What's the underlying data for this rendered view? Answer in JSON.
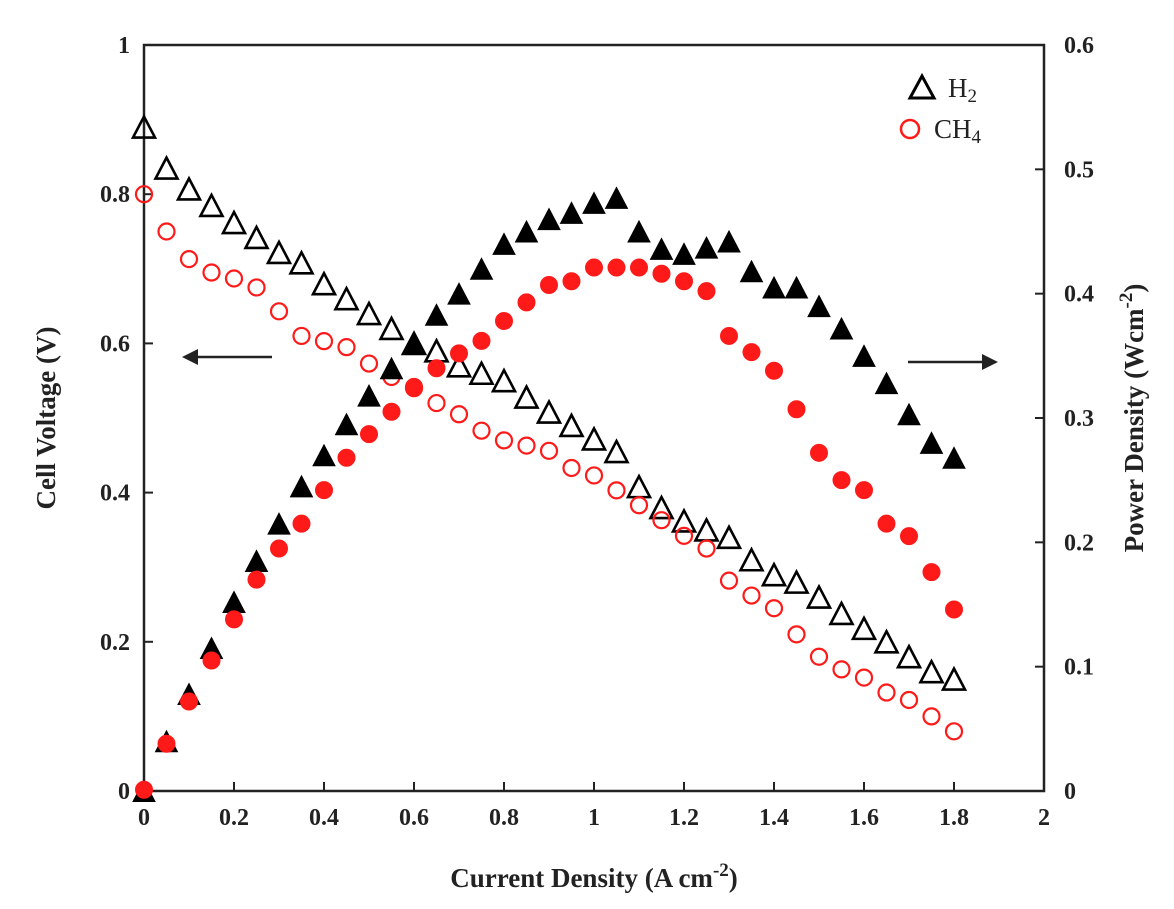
{
  "chart_data": {
    "type": "scatter",
    "x_label": "Current  Density (A cm",
    "x_label_sup": "-2",
    "x_label_end": ")",
    "y_left_label": "Cell Voltage (V)",
    "y_right_label": "Power Density (Wcm",
    "y_right_label_sup": "-2",
    "y_right_label_end": ")",
    "x_range": [
      0,
      2
    ],
    "y_left_range": [
      0,
      1
    ],
    "y_right_range": [
      0,
      0.6
    ],
    "x_ticks": [
      "0",
      "0.2",
      "0.4",
      "0.6",
      "0.8",
      "1",
      "1.2",
      "1.4",
      "1.6",
      "1.8",
      "2"
    ],
    "y_left_ticks": [
      "0",
      "0.2",
      "0.4",
      "0.6",
      "0.8",
      "1"
    ],
    "y_right_ticks": [
      "0",
      "0.1",
      "0.2",
      "0.3",
      "0.4",
      "0.5",
      "0.6"
    ],
    "legend": [
      {
        "name": "H2",
        "label": "H",
        "sub": "2",
        "marker": "triangle",
        "color": "#000000"
      },
      {
        "name": "CH4",
        "label": "CH",
        "sub": "4",
        "marker": "circle",
        "color": "#ff1a1a"
      }
    ],
    "annotations": [
      {
        "text": "arrow pointing left to Cell Voltage axis",
        "direction": "left"
      },
      {
        "text": "arrow pointing right to Power Density axis",
        "direction": "right"
      }
    ],
    "x": [
      0,
      0.05,
      0.1,
      0.15,
      0.2,
      0.25,
      0.3,
      0.35,
      0.4,
      0.45,
      0.5,
      0.55,
      0.6,
      0.65,
      0.7,
      0.75,
      0.8,
      0.85,
      0.9,
      0.95,
      1.0,
      1.05,
      1.1,
      1.15,
      1.2,
      1.25,
      1.3,
      1.35,
      1.4,
      1.45,
      1.5,
      1.55,
      1.6,
      1.65,
      1.7,
      1.75,
      1.8
    ],
    "series": [
      {
        "name": "H2 voltage",
        "axis": "left",
        "marker": "triangle-open",
        "color": "#000000",
        "values": [
          0.89,
          0.835,
          0.807,
          0.785,
          0.762,
          0.742,
          0.722,
          0.708,
          0.68,
          0.66,
          0.64,
          0.62,
          0.6,
          0.59,
          0.57,
          0.56,
          0.55,
          0.528,
          0.508,
          0.49,
          0.472,
          0.455,
          0.408,
          0.38,
          0.362,
          0.35,
          0.34,
          0.31,
          0.29,
          0.28,
          0.26,
          0.238,
          0.218,
          0.2,
          0.18,
          0.16,
          0.15
        ]
      },
      {
        "name": "CH4 voltage",
        "axis": "left",
        "marker": "circle-open",
        "color": "#ff1a1a",
        "values": [
          0.8,
          0.75,
          0.713,
          0.695,
          0.687,
          0.675,
          0.643,
          0.61,
          0.603,
          0.595,
          0.573,
          0.555,
          0.54,
          0.52,
          0.505,
          0.483,
          0.47,
          0.463,
          0.456,
          0.433,
          0.423,
          0.403,
          0.383,
          0.363,
          0.342,
          0.325,
          0.282,
          0.262,
          0.245,
          0.21,
          0.18,
          0.163,
          0.152,
          0.132,
          0.122,
          0.1,
          0.08
        ]
      },
      {
        "name": "H2 power",
        "axis": "right",
        "marker": "triangle-filled",
        "color": "#000000",
        "values": [
          0,
          0.04,
          0.078,
          0.115,
          0.152,
          0.185,
          0.215,
          0.245,
          0.27,
          0.295,
          0.318,
          0.34,
          0.36,
          0.383,
          0.4,
          0.42,
          0.44,
          0.45,
          0.46,
          0.465,
          0.473,
          0.477,
          0.45,
          0.436,
          0.432,
          0.437,
          0.442,
          0.418,
          0.405,
          0.405,
          0.39,
          0.372,
          0.35,
          0.328,
          0.303,
          0.28,
          0.268
        ]
      },
      {
        "name": "CH4 power",
        "axis": "right",
        "marker": "circle-filled",
        "color": "#ff1a1a",
        "values": [
          0.001,
          0.038,
          0.072,
          0.105,
          0.138,
          0.17,
          0.195,
          0.215,
          0.242,
          0.268,
          0.287,
          0.305,
          0.325,
          0.34,
          0.352,
          0.362,
          0.378,
          0.393,
          0.407,
          0.41,
          0.421,
          0.421,
          0.421,
          0.416,
          0.41,
          0.402,
          0.366,
          0.353,
          0.338,
          0.307,
          0.272,
          0.25,
          0.242,
          0.215,
          0.205,
          0.176,
          0.146
        ]
      }
    ]
  }
}
